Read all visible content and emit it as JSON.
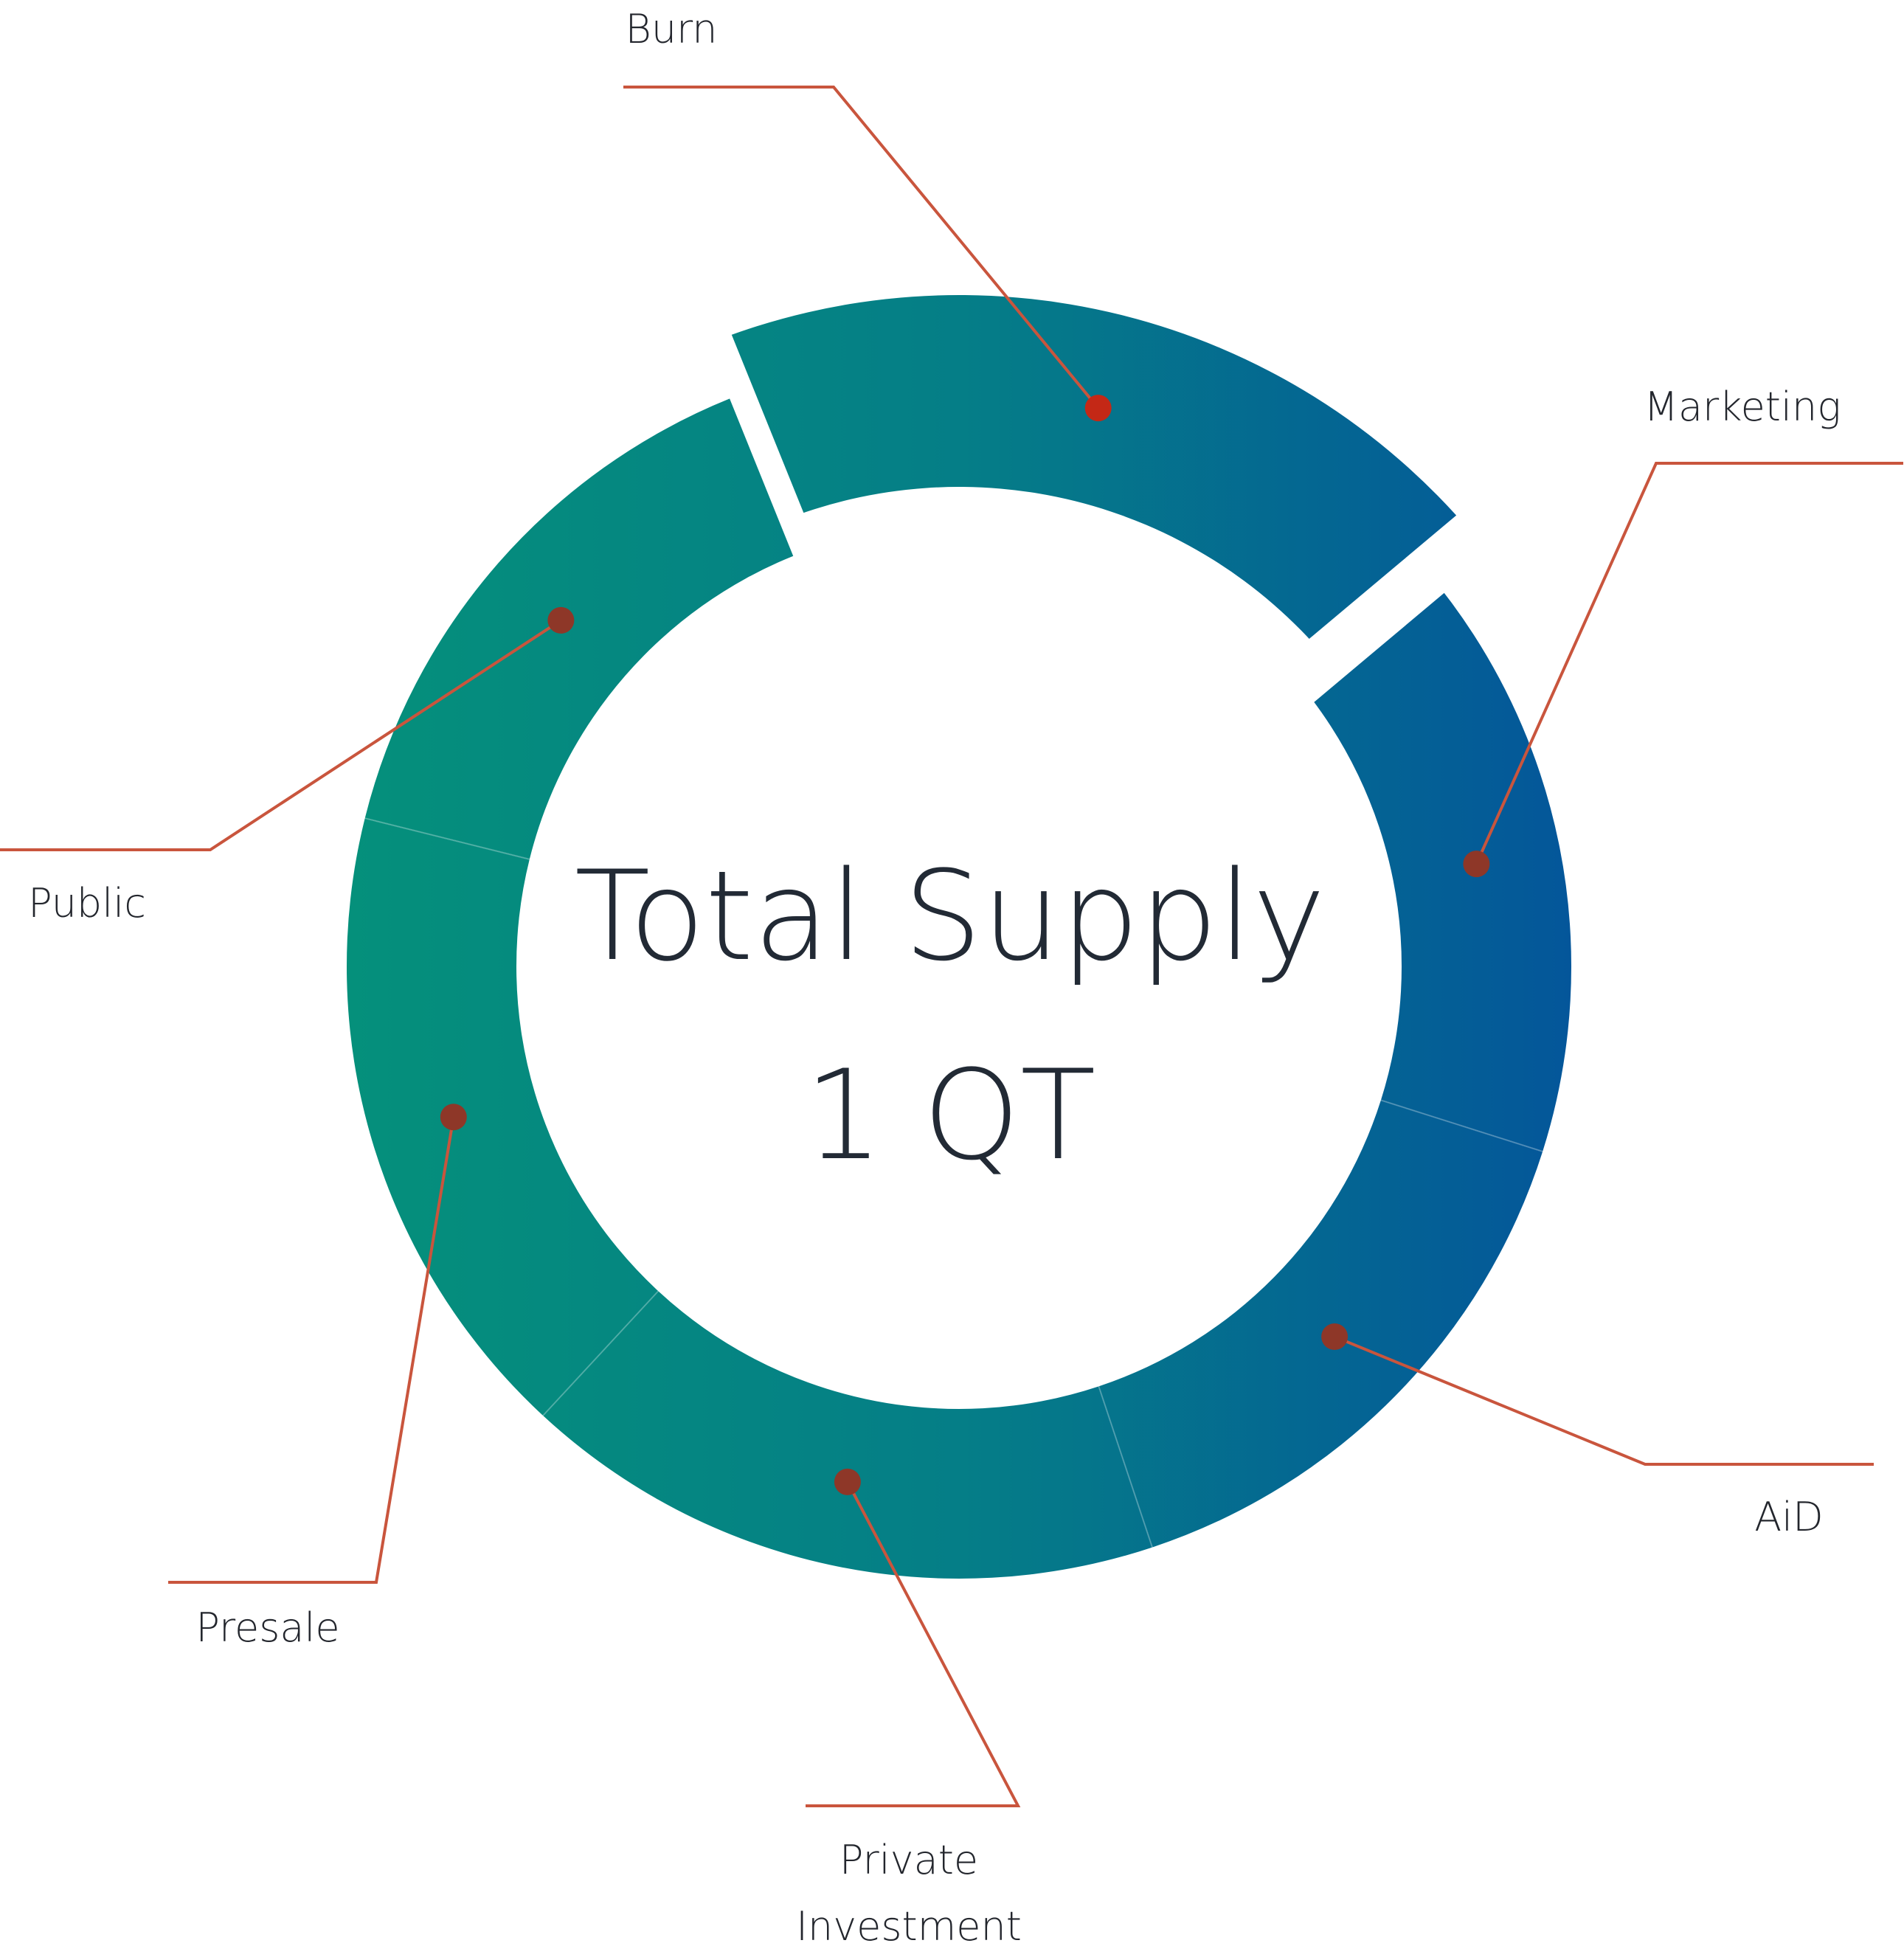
{
  "chart_data": {
    "type": "pie",
    "title": "Total Supply",
    "subtitle": "1 QT",
    "categories": [
      "Burn",
      "Marketing",
      "AiD",
      "Private Investment",
      "Presale",
      "Public"
    ],
    "slice_labels": [
      [
        "Burn"
      ],
      [
        "Marketing"
      ],
      [
        "AiD"
      ],
      [
        "Private",
        "Investment"
      ],
      [
        "Presale"
      ],
      [
        "Public"
      ]
    ],
    "values": [
      20,
      16,
      15,
      17,
      17,
      15
    ],
    "exploded_slice": "Burn",
    "colors": {
      "start": "#05907b",
      "end": "#04569a",
      "leader": "#c9553d",
      "dot": "#8e3728",
      "burn_dot": "#c42816"
    }
  }
}
